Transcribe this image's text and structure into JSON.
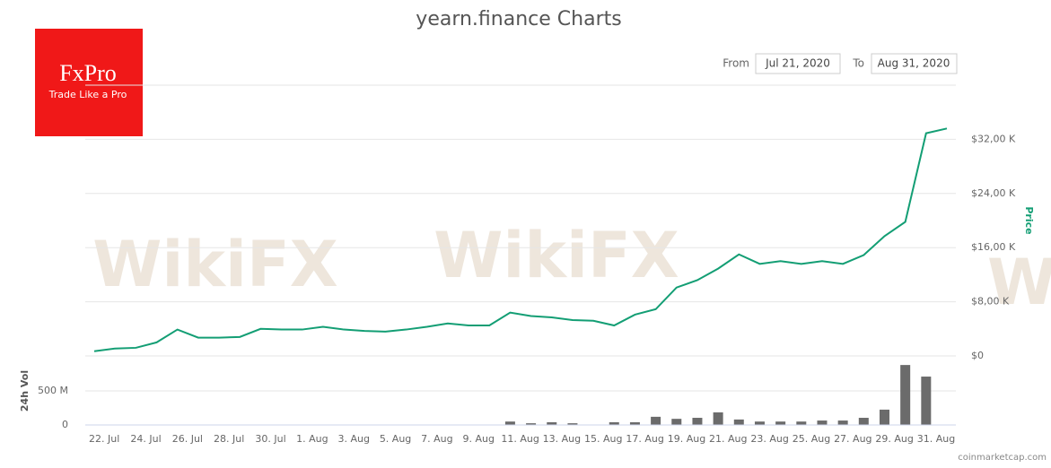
{
  "page": {
    "logo": "FxPro",
    "tagline": "Trade Like a Pro",
    "from_label": "From",
    "from_date": "Jul 21, 2020",
    "to_label": "To",
    "to_date": "Aug 31, 2020",
    "source": "coinmarketcap.com",
    "watermark": "WikiFX"
  },
  "chart_data": [
    {
      "type": "line",
      "title": "yearn.finance Charts",
      "y_label": "Price",
      "color": "#139e74",
      "categories": [
        null,
        "22. Jul",
        null,
        "24. Jul",
        null,
        "26. Jul",
        null,
        "28. Jul",
        null,
        "30. Jul",
        null,
        "1. Aug",
        null,
        "3. Aug",
        null,
        "5. Aug",
        null,
        "7. Aug",
        null,
        "9. Aug",
        null,
        "11. Aug",
        null,
        "13. Aug",
        null,
        "15. Aug",
        null,
        "17. Aug",
        null,
        "19. Aug",
        null,
        "21. Aug",
        null,
        "23. Aug",
        null,
        "25. Aug",
        null,
        "27. Aug",
        null,
        "29. Aug",
        null,
        "31. Aug"
      ],
      "values": [
        700,
        1100,
        1200,
        2000,
        3900,
        2700,
        2700,
        2800,
        4000,
        3900,
        3900,
        4300,
        3900,
        3700,
        3600,
        3900,
        4300,
        4800,
        4500,
        4500,
        6400,
        5900,
        5700,
        5300,
        5200,
        4500,
        6100,
        6900,
        10100,
        11200,
        12900,
        15000,
        13600,
        14000,
        13600,
        14000,
        13600,
        14900,
        17700,
        19800,
        32900,
        33600
      ],
      "ylim": [
        0,
        40000
      ],
      "yticks": [
        {
          "value": 0,
          "label": "$0"
        },
        {
          "value": 8000,
          "label": "$8,00 K"
        },
        {
          "value": 16000,
          "label": "$16,00 K"
        },
        {
          "value": 24000,
          "label": "$24,00 K"
        },
        {
          "value": 32000,
          "label": "$32,00 K"
        },
        40000
      ],
      "grid": true
    },
    {
      "type": "bar",
      "y_label": "24h Vol",
      "color": "#6b6b6b",
      "values": [
        0,
        0,
        0,
        0,
        0,
        0,
        0,
        0,
        0,
        0,
        0,
        0,
        0,
        0,
        0,
        0,
        0,
        0,
        0,
        0,
        50000000,
        25000000,
        40000000,
        25000000,
        0,
        40000000,
        40000000,
        120000000,
        90000000,
        105000000,
        185000000,
        80000000,
        50000000,
        50000000,
        50000000,
        65000000,
        65000000,
        105000000,
        225000000,
        880000000,
        710000000,
        0
      ],
      "ylim": [
        0,
        1000000000
      ],
      "yticks": [
        0,
        {
          "value": 500000000,
          "label": "500 M"
        }
      ],
      "grid": true
    }
  ]
}
